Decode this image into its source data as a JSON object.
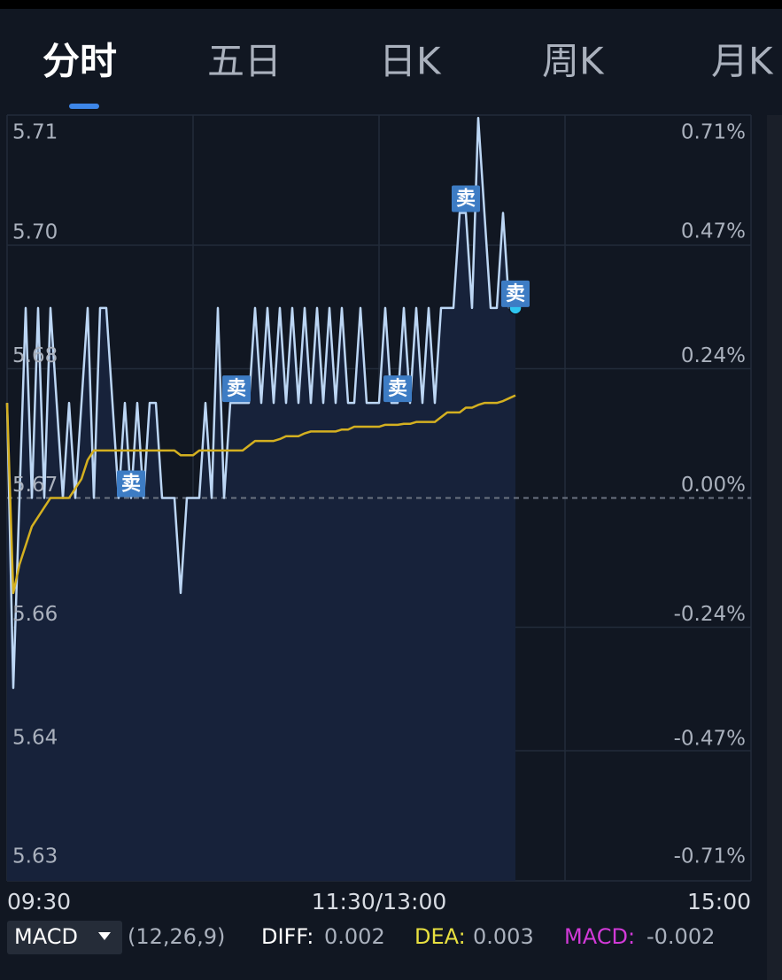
{
  "tabs": [
    "分时",
    "五日",
    "日K",
    "周K",
    "月K"
  ],
  "macd": {
    "name": "MACD",
    "params": "(12,26,9)",
    "diff_label": "DIFF:",
    "diff": "0.002",
    "dea_label": "DEA:",
    "dea": "0.003",
    "macd_label": "MACD:",
    "macd": "-0.002"
  },
  "chart_data": {
    "type": "line",
    "categories": [
      "09:30",
      null,
      null,
      null,
      null,
      null,
      null,
      null,
      null,
      null,
      null,
      null,
      null,
      null,
      null,
      null,
      null,
      null,
      null,
      null,
      null,
      null,
      null,
      null,
      null,
      null,
      null,
      null,
      null,
      null,
      null,
      null,
      null,
      null,
      null,
      null,
      null,
      null,
      null,
      null,
      null,
      null,
      null,
      null,
      null,
      null,
      null,
      null,
      null,
      null,
      null,
      null,
      null,
      null,
      null,
      null,
      null,
      null,
      null,
      null,
      "11:30/13:00",
      null,
      null,
      null,
      null,
      null,
      null,
      null,
      null,
      null,
      null,
      null,
      null,
      null,
      null,
      null,
      null,
      null,
      null,
      null,
      null,
      null,
      null,
      null,
      null,
      null,
      null,
      null,
      null,
      null,
      null,
      null,
      null,
      null,
      null,
      null,
      null,
      null,
      null,
      null,
      null,
      null,
      null,
      null,
      null,
      null,
      null,
      null,
      null,
      null,
      null,
      null,
      null,
      null,
      null,
      null,
      null,
      null,
      null,
      null,
      "15:00"
    ],
    "series": [
      {
        "color": "#bcd6f4",
        "values": [
          5.68,
          5.65,
          5.67,
          5.69,
          5.67,
          5.69,
          5.67,
          5.69,
          5.68,
          5.67,
          5.68,
          5.67,
          5.68,
          5.69,
          5.67,
          5.69,
          5.69,
          5.68,
          5.67,
          5.68,
          5.67,
          5.68,
          5.67,
          5.68,
          5.68,
          5.67,
          5.67,
          5.67,
          5.66,
          5.67,
          5.67,
          5.67,
          5.68,
          5.67,
          5.69,
          5.67,
          5.68,
          5.68,
          5.68,
          5.68,
          5.69,
          5.68,
          5.69,
          5.68,
          5.69,
          5.68,
          5.69,
          5.68,
          5.69,
          5.68,
          5.69,
          5.68,
          5.69,
          5.68,
          5.69,
          5.68,
          5.68,
          5.69,
          5.68,
          5.68,
          5.68,
          5.69,
          5.68,
          5.68,
          5.69,
          5.68,
          5.69,
          5.68,
          5.69,
          5.68,
          5.69,
          5.69,
          5.69,
          5.7,
          5.7,
          5.69,
          5.71,
          5.7,
          5.69,
          5.69,
          5.7,
          5.69,
          5.69,
          null,
          null,
          null,
          null,
          null,
          null,
          null,
          null,
          null,
          null,
          null,
          null,
          null,
          null,
          null,
          null,
          null,
          null,
          null,
          null,
          null,
          null,
          null,
          null,
          null,
          null,
          null,
          null,
          null,
          null,
          null,
          null,
          null,
          null,
          null,
          null,
          null,
          null
        ]
      },
      {
        "color": "#d4b020",
        "values": [
          5.68,
          5.66,
          5.663,
          5.665,
          5.667,
          5.668,
          5.669,
          5.67,
          5.67,
          5.67,
          5.67,
          5.671,
          5.672,
          5.674,
          5.675,
          5.675,
          5.675,
          5.675,
          5.675,
          5.675,
          5.675,
          5.675,
          5.675,
          5.675,
          5.675,
          5.675,
          5.675,
          5.675,
          5.6745,
          5.6745,
          5.6745,
          5.675,
          5.675,
          5.675,
          5.675,
          5.675,
          5.675,
          5.675,
          5.675,
          5.6755,
          5.676,
          5.676,
          5.676,
          5.676,
          5.6762,
          5.6765,
          5.6765,
          5.6765,
          5.6768,
          5.677,
          5.677,
          5.677,
          5.677,
          5.677,
          5.6772,
          5.6772,
          5.6775,
          5.6775,
          5.6775,
          5.6775,
          5.6775,
          5.6777,
          5.6777,
          5.6777,
          5.6778,
          5.6778,
          5.678,
          5.678,
          5.678,
          5.678,
          5.6785,
          5.679,
          5.679,
          5.679,
          5.6795,
          5.6795,
          5.6798,
          5.68,
          5.68,
          5.68,
          5.6802,
          5.6805,
          5.6808,
          null,
          null,
          null,
          null,
          null,
          null,
          null,
          null,
          null,
          null,
          null,
          null,
          null,
          null,
          null,
          null,
          null,
          null,
          null,
          null,
          null,
          null,
          null,
          null,
          null,
          null,
          null,
          null,
          null,
          null,
          null,
          null,
          null,
          null,
          null,
          null,
          null,
          null
        ]
      }
    ],
    "ylim": [
      5.6297,
      5.7103
    ],
    "yticks": [
      {
        "value": 5.7103,
        "label": "5.71"
      },
      {
        "value": 5.6966,
        "label": "5.70"
      },
      {
        "value": 5.6836,
        "label": "5.68"
      },
      {
        "value": 5.67,
        "label": "5.67"
      },
      {
        "value": 5.6564,
        "label": "5.66"
      },
      {
        "value": 5.6434,
        "label": "5.64"
      },
      {
        "value": 5.6297,
        "label": "5.63"
      }
    ],
    "y2lim": [
      -0.71,
      0.71
    ],
    "y2ticks": [
      {
        "value": 0.71,
        "label": "0.71%"
      },
      {
        "value": 0.47,
        "label": "0.47%"
      },
      {
        "value": 0.24,
        "label": "0.24%"
      },
      {
        "value": 0,
        "label": "0.00%"
      },
      {
        "value": -0.24,
        "label": "-0.24%"
      },
      {
        "value": -0.47,
        "label": "-0.47%"
      },
      {
        "value": -0.71,
        "label": "-0.71%"
      }
    ],
    "annotations": [
      {
        "text": "卖",
        "index": 20
      },
      {
        "text": "卖",
        "index": 37
      },
      {
        "text": "卖",
        "index": 63
      },
      {
        "text": "卖",
        "index": 74
      },
      {
        "text": "卖",
        "index": 82
      }
    ]
  }
}
